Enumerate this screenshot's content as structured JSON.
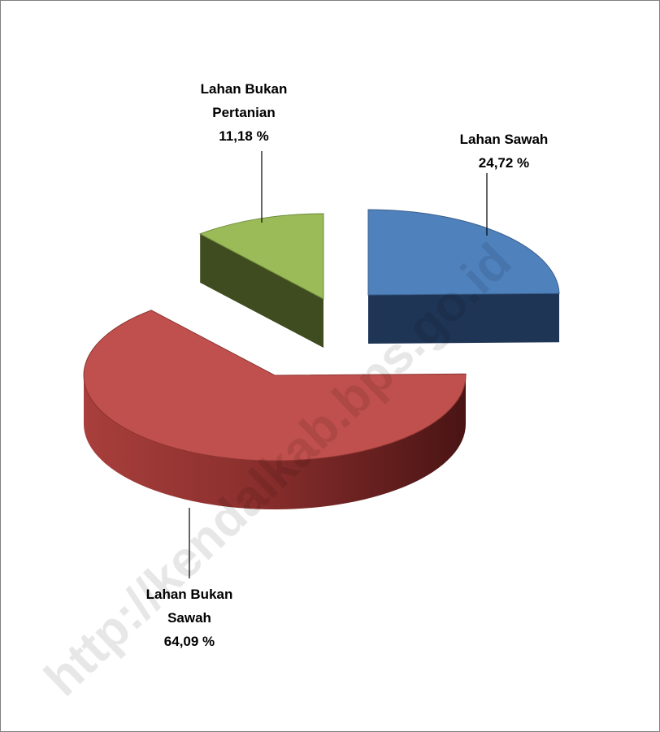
{
  "chart_data": {
    "type": "pie",
    "title": "",
    "labels": [
      "Lahan Sawah",
      "Lahan Bukan Sawah",
      "Lahan Bukan Pertanian"
    ],
    "values": [
      24.72,
      64.09,
      11.18
    ],
    "value_labels": [
      "24,72 %",
      "64,09 %",
      "11,18 %"
    ],
    "label_lines": [
      [
        "Lahan Sawah"
      ],
      [
        "Lahan Bukan",
        "Sawah"
      ],
      [
        "Lahan Bukan",
        "Pertanian"
      ]
    ],
    "colors": [
      "#4f81bd",
      "#c0504d",
      "#9bbb59"
    ],
    "style": "3d-exploded",
    "legend": "none"
  },
  "watermark": "http://kendalkab.bps.go.id"
}
